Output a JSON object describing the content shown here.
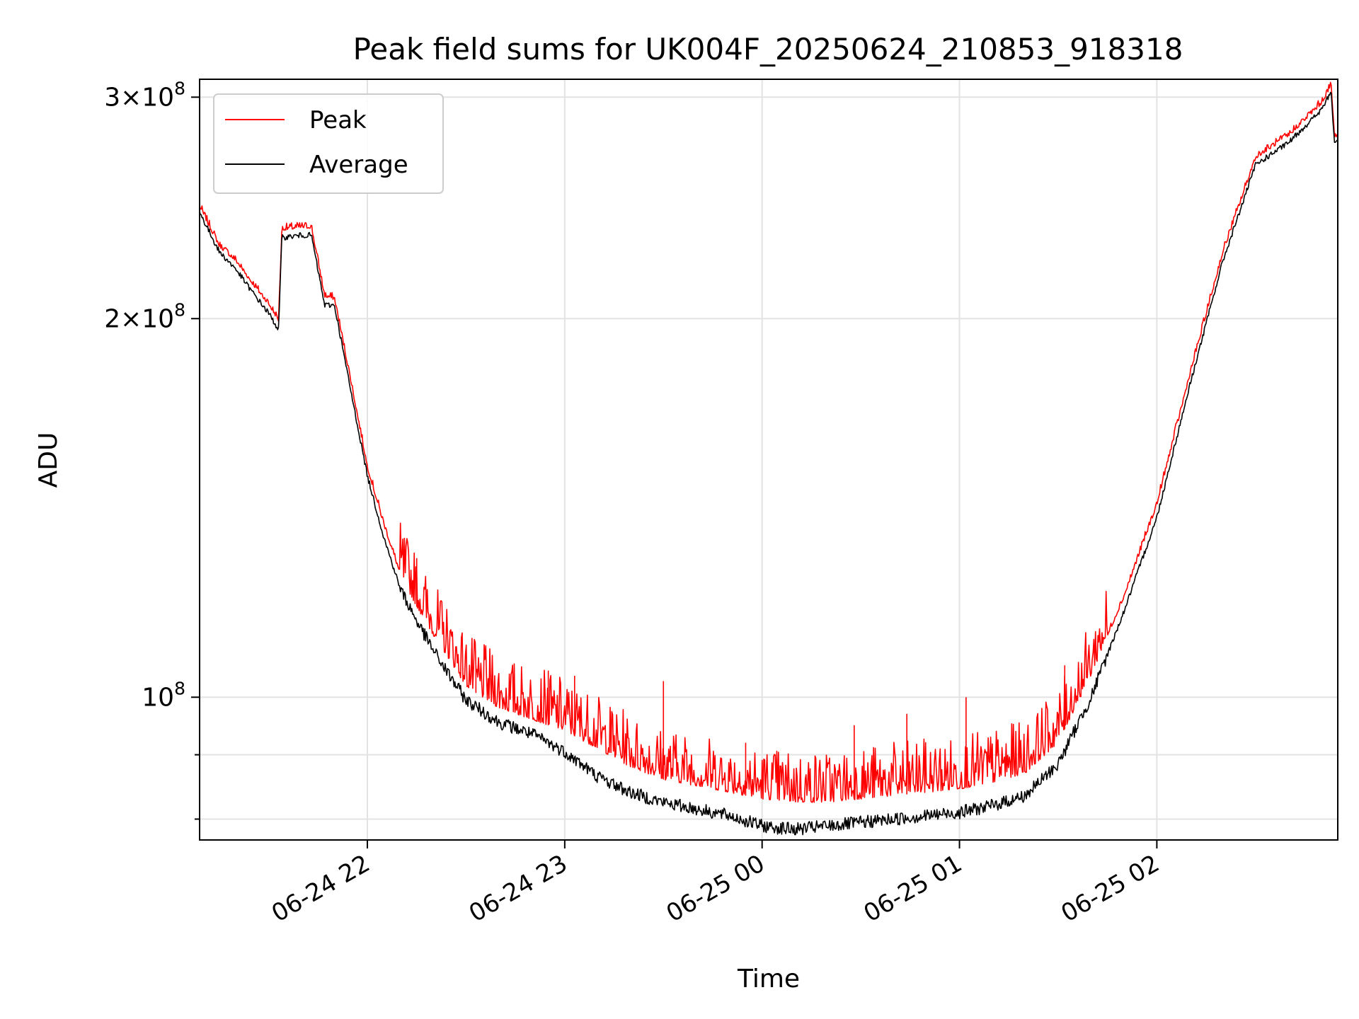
{
  "chart_data": {
    "type": "line",
    "title": "Peak field sums for UK004F_20250624_210853_918318",
    "xlabel": "Time",
    "ylabel": "ADU",
    "yscale": "log",
    "grid": true,
    "legend_position": "top-left",
    "xlim": [
      "2025-06-24 21:09",
      "2025-06-25 02:55"
    ],
    "ylim": [
      77000000,
      310000000
    ],
    "x_ticks": [
      {
        "value": "2025-06-24 22:00",
        "label": "06-24 22"
      },
      {
        "value": "2025-06-24 23:00",
        "label": "06-24 23"
      },
      {
        "value": "2025-06-25 00:00",
        "label": "06-25 00"
      },
      {
        "value": "2025-06-25 01:00",
        "label": "06-25 01"
      },
      {
        "value": "2025-06-25 02:00",
        "label": "06-25 02"
      }
    ],
    "y_major_ticks": [
      {
        "value": 100000000,
        "base": "10",
        "exp": "8",
        "coef": ""
      },
      {
        "value": 200000000,
        "base": "10",
        "exp": "8",
        "coef": "2"
      },
      {
        "value": 300000000,
        "base": "10",
        "exp": "8",
        "coef": "3"
      }
    ],
    "y_minor_ticks": [
      80000000,
      90000000
    ],
    "series": [
      {
        "name": "Peak",
        "color": "#ff0000",
        "points": [
          [
            "2025-06-24 21:09",
            245000000
          ],
          [
            "2025-06-24 21:15",
            228000000
          ],
          [
            "2025-06-24 21:20",
            222000000
          ],
          [
            "2025-06-24 21:25",
            213000000
          ],
          [
            "2025-06-24 21:30",
            205000000
          ],
          [
            "2025-06-24 21:33",
            199000000
          ],
          [
            "2025-06-24 21:34",
            235000000
          ],
          [
            "2025-06-24 21:40",
            236000000
          ],
          [
            "2025-06-24 21:43",
            236000000
          ],
          [
            "2025-06-24 21:47",
            208000000
          ],
          [
            "2025-06-24 21:50",
            207000000
          ],
          [
            "2025-06-24 21:55",
            178000000
          ],
          [
            "2025-06-24 22:00",
            152000000
          ],
          [
            "2025-06-24 22:05",
            137000000
          ],
          [
            "2025-06-24 22:10",
            125000000
          ],
          [
            "2025-06-24 22:15",
            118000000
          ],
          [
            "2025-06-24 22:20",
            112000000
          ],
          [
            "2025-06-24 22:25",
            107000000
          ],
          [
            "2025-06-24 22:30",
            102000000
          ],
          [
            "2025-06-24 22:40",
            98000000
          ],
          [
            "2025-06-24 22:50",
            96000000
          ],
          [
            "2025-06-24 23:00",
            94000000
          ],
          [
            "2025-06-24 23:10",
            91000000
          ],
          [
            "2025-06-24 23:20",
            88000000
          ],
          [
            "2025-06-24 23:30",
            86000000
          ],
          [
            "2025-06-24 23:40",
            85000000
          ],
          [
            "2025-06-24 23:50",
            84000000
          ],
          [
            "2025-06-25 00:00",
            83000000
          ],
          [
            "2025-06-25 00:10",
            82500000
          ],
          [
            "2025-06-25 00:20",
            82500000
          ],
          [
            "2025-06-25 00:30",
            83000000
          ],
          [
            "2025-06-25 00:40",
            83500000
          ],
          [
            "2025-06-25 00:50",
            84000000
          ],
          [
            "2025-06-25 01:00",
            84500000
          ],
          [
            "2025-06-25 01:10",
            85500000
          ],
          [
            "2025-06-25 01:20",
            87000000
          ],
          [
            "2025-06-25 01:30",
            92000000
          ],
          [
            "2025-06-25 01:40",
            104000000
          ],
          [
            "2025-06-25 01:50",
            120000000
          ],
          [
            "2025-06-25 02:00",
            142000000
          ],
          [
            "2025-06-25 02:10",
            180000000
          ],
          [
            "2025-06-25 02:20",
            225000000
          ],
          [
            "2025-06-25 02:30",
            268000000
          ],
          [
            "2025-06-25 02:40",
            279000000
          ],
          [
            "2025-06-25 02:50",
            296000000
          ],
          [
            "2025-06-25 02:53",
            306000000
          ],
          [
            "2025-06-25 02:54",
            278000000
          ],
          [
            "2025-06-25 02:55",
            280000000
          ]
        ]
      },
      {
        "name": "Average",
        "color": "#000000",
        "points": [
          [
            "2025-06-24 21:09",
            243000000
          ],
          [
            "2025-06-24 21:15",
            226000000
          ],
          [
            "2025-06-24 21:20",
            219000000
          ],
          [
            "2025-06-24 21:25",
            210000000
          ],
          [
            "2025-06-24 21:30",
            202000000
          ],
          [
            "2025-06-24 21:33",
            196000000
          ],
          [
            "2025-06-24 21:34",
            232000000
          ],
          [
            "2025-06-24 21:40",
            233000000
          ],
          [
            "2025-06-24 21:43",
            233000000
          ],
          [
            "2025-06-24 21:47",
            205000000
          ],
          [
            "2025-06-24 21:50",
            205000000
          ],
          [
            "2025-06-24 21:55",
            175000000
          ],
          [
            "2025-06-24 22:00",
            150000000
          ],
          [
            "2025-06-24 22:05",
            134000000
          ],
          [
            "2025-06-24 22:10",
            122000000
          ],
          [
            "2025-06-24 22:15",
            115000000
          ],
          [
            "2025-06-24 22:20",
            109000000
          ],
          [
            "2025-06-24 22:25",
            104000000
          ],
          [
            "2025-06-24 22:30",
            99500000
          ],
          [
            "2025-06-24 22:40",
            95500000
          ],
          [
            "2025-06-24 22:50",
            93500000
          ],
          [
            "2025-06-24 23:00",
            90500000
          ],
          [
            "2025-06-24 23:10",
            86500000
          ],
          [
            "2025-06-24 23:20",
            84000000
          ],
          [
            "2025-06-24 23:30",
            82500000
          ],
          [
            "2025-06-24 23:40",
            81500000
          ],
          [
            "2025-06-24 23:50",
            80500000
          ],
          [
            "2025-06-25 00:00",
            79000000
          ],
          [
            "2025-06-25 00:10",
            78500000
          ],
          [
            "2025-06-25 00:20",
            79000000
          ],
          [
            "2025-06-25 00:30",
            79500000
          ],
          [
            "2025-06-25 00:40",
            80000000
          ],
          [
            "2025-06-25 00:50",
            80500000
          ],
          [
            "2025-06-25 01:00",
            81000000
          ],
          [
            "2025-06-25 01:10",
            82000000
          ],
          [
            "2025-06-25 01:20",
            83500000
          ],
          [
            "2025-06-25 01:30",
            88500000
          ],
          [
            "2025-06-25 01:40",
            100000000
          ],
          [
            "2025-06-25 01:50",
            117000000
          ],
          [
            "2025-06-25 02:00",
            139000000
          ],
          [
            "2025-06-25 02:10",
            177000000
          ],
          [
            "2025-06-25 02:20",
            222000000
          ],
          [
            "2025-06-25 02:30",
            265000000
          ],
          [
            "2025-06-25 02:40",
            276000000
          ],
          [
            "2025-06-25 02:50",
            293000000
          ],
          [
            "2025-06-25 02:53",
            303000000
          ],
          [
            "2025-06-25 02:54",
            275000000
          ],
          [
            "2025-06-25 02:55",
            278000000
          ]
        ]
      }
    ],
    "peak_spikes": [
      [
        "2025-06-24 22:15",
        129000000
      ],
      [
        "2025-06-24 22:33",
        106000000
      ],
      [
        "2025-06-24 22:55",
        105000000
      ],
      [
        "2025-06-24 23:03",
        104000000
      ],
      [
        "2025-06-24 23:30",
        103000000
      ],
      [
        "2025-06-24 23:55",
        92000000
      ],
      [
        "2025-06-25 00:28",
        95000000
      ],
      [
        "2025-06-25 00:44",
        97000000
      ],
      [
        "2025-06-25 01:02",
        100000000
      ],
      [
        "2025-06-25 01:32",
        106000000
      ]
    ]
  }
}
